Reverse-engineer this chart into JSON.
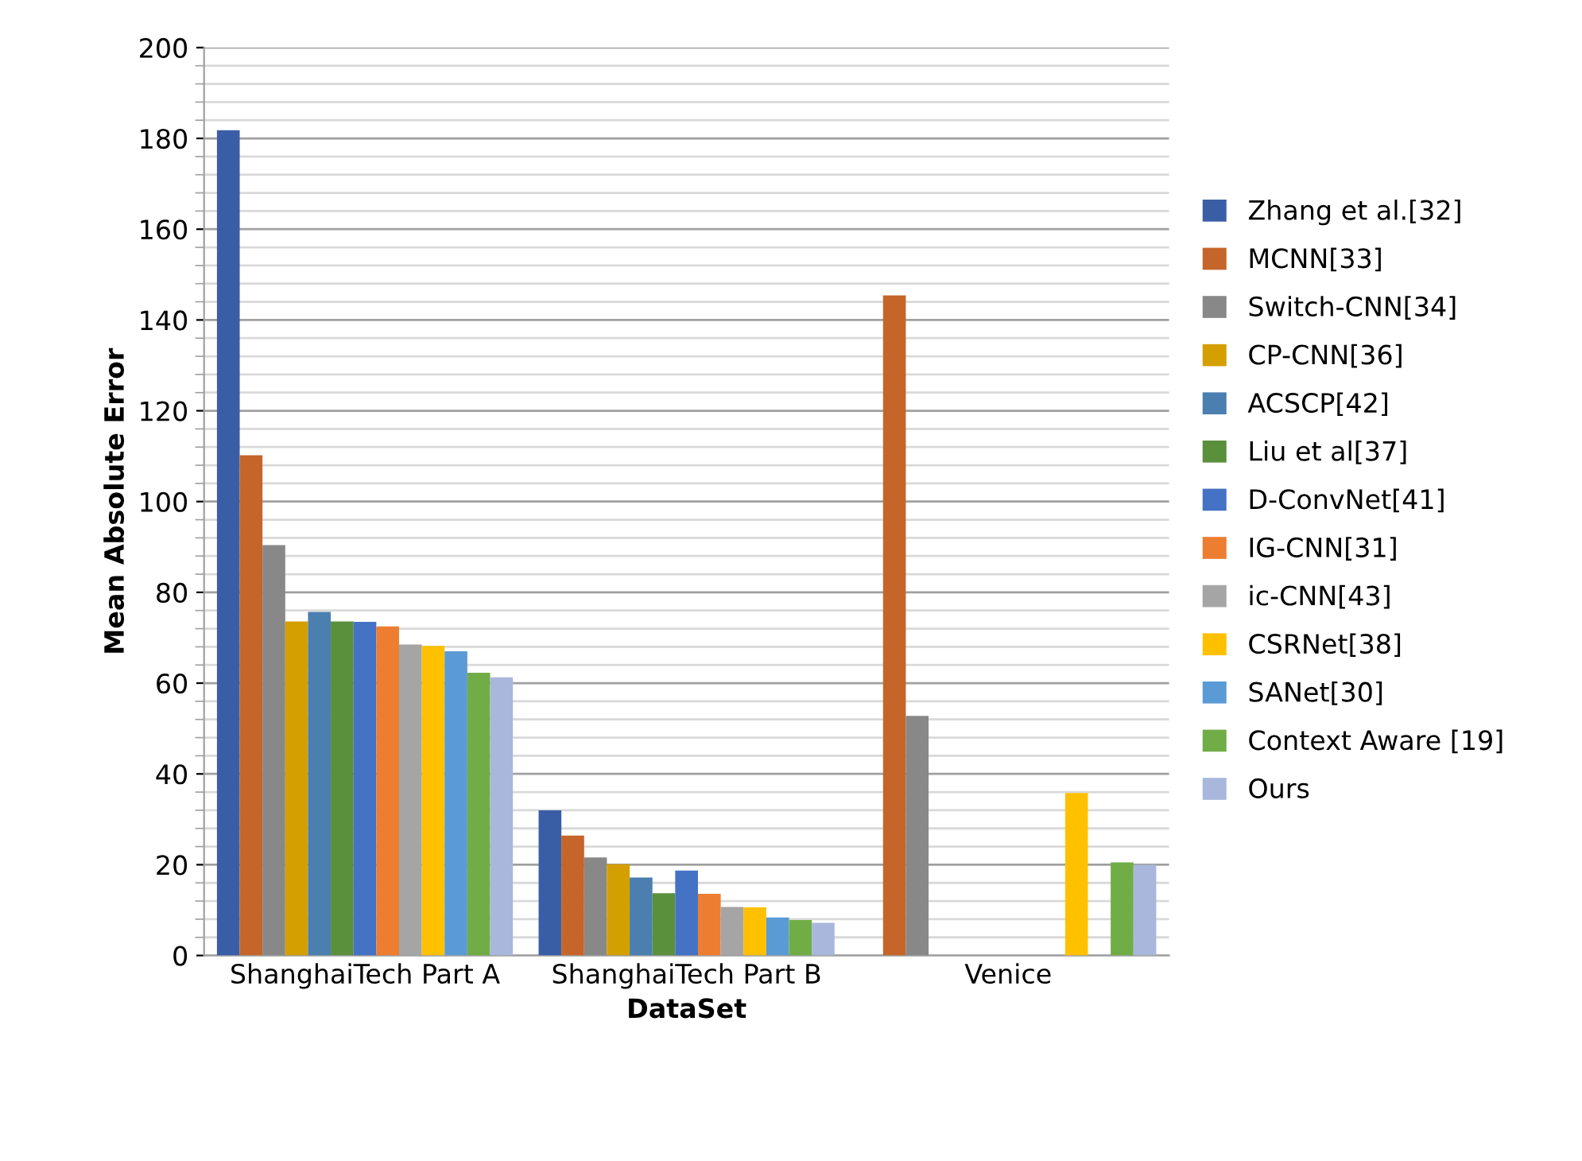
{
  "chart_data": {
    "type": "bar",
    "xlabel": "DataSet",
    "ylabel": "Mean Absolute Error",
    "categories": [
      "ShanghaiTech Part A",
      "ShanghaiTech Part B",
      "Venice"
    ],
    "series": [
      {
        "name": "Zhang et al.[32]",
        "color": "#3a5ea6",
        "values": [
          181.8,
          32.0,
          null
        ]
      },
      {
        "name": "MCNN[33]",
        "color": "#c5652a",
        "values": [
          110.2,
          26.4,
          145.4
        ]
      },
      {
        "name": "Switch-CNN[34]",
        "color": "#888888",
        "values": [
          90.4,
          21.6,
          52.8
        ]
      },
      {
        "name": "CP-CNN[36]",
        "color": "#d49f00",
        "values": [
          73.6,
          20.1,
          null
        ]
      },
      {
        "name": "ACSCP[42]",
        "color": "#4a7fb0",
        "values": [
          75.7,
          17.2,
          null
        ]
      },
      {
        "name": "Liu et al[37]",
        "color": "#5a8f3c",
        "values": [
          73.6,
          13.7,
          null
        ]
      },
      {
        "name": "D-ConvNet[41]",
        "color": "#4472c4",
        "values": [
          73.5,
          18.7,
          null
        ]
      },
      {
        "name": "IG-CNN[31]",
        "color": "#ed7d31",
        "values": [
          72.5,
          13.6,
          null
        ]
      },
      {
        "name": "ic-CNN[43]",
        "color": "#a5a5a5",
        "values": [
          68.5,
          10.7,
          null
        ]
      },
      {
        "name": "CSRNet[38]",
        "color": "#ffc000",
        "values": [
          68.2,
          10.6,
          35.8
        ]
      },
      {
        "name": "SANet[30]",
        "color": "#5b9bd5",
        "values": [
          67.0,
          8.4,
          null
        ]
      },
      {
        "name": "Context Aware [19]",
        "color": "#70ad47",
        "values": [
          62.3,
          7.8,
          20.5
        ]
      },
      {
        "name": "Ours",
        "color": "#a9b7dc",
        "values": [
          61.3,
          7.2,
          20.0
        ]
      }
    ],
    "ylim": [
      0,
      200
    ],
    "yticks": [
      0,
      20,
      40,
      60,
      80,
      100,
      120,
      140,
      160,
      180,
      200
    ],
    "grid": "y",
    "legend": "right"
  }
}
